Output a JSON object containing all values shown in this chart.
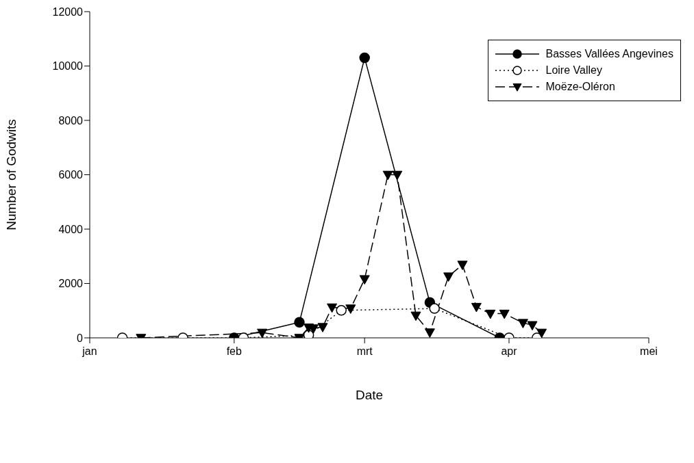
{
  "chart_data": {
    "type": "line",
    "xlabel": "Date",
    "ylabel": "Number of Godwits",
    "xlim": [
      "--01-01",
      "--05-01"
    ],
    "xticks": [
      {
        "value": "--01-01",
        "label": "jan"
      },
      {
        "value": "--02-01",
        "label": "feb"
      },
      {
        "value": "--03-01",
        "label": "mrt"
      },
      {
        "value": "--04-01",
        "label": "apr"
      },
      {
        "value": "--05-01",
        "label": "mei"
      }
    ],
    "ylim": [
      0,
      12000
    ],
    "yticks": [
      0,
      2000,
      4000,
      6000,
      8000,
      10000,
      12000
    ],
    "legend": "top right",
    "series": [
      {
        "name": "Basses Vallées Angevines",
        "color": "#000000",
        "marker": "circle",
        "line_style": "solid",
        "x": [
          "--02-01",
          "--02-15",
          "--03-01",
          "--03-15",
          "--03-30"
        ],
        "values": [
          0,
          570,
          10300,
          1300,
          0
        ]
      },
      {
        "name": "Loire Valley",
        "color": "#000000",
        "marker": "circle-open",
        "line_style": "dotted",
        "x": [
          "--01-08",
          "--01-21",
          "--02-03",
          "--02-17",
          "--02-24",
          "--03-16",
          "--04-01",
          "--04-07"
        ],
        "values": [
          0,
          0,
          0,
          100,
          1010,
          1080,
          0,
          0
        ]
      },
      {
        "name": "Moëze-Oléron",
        "color": "#000000",
        "marker": "triangle",
        "line_style": "dashed",
        "x": [
          "--01-12",
          "--02-07",
          "--02-15",
          "--02-17",
          "--02-18",
          "--02-20",
          "--02-22",
          "--02-26",
          "--03-01",
          "--03-06",
          "--03-08",
          "--03-12",
          "--03-15",
          "--03-19",
          "--03-22",
          "--03-25",
          "--03-28",
          "--03-31",
          "--04-04",
          "--04-06",
          "--04-08"
        ],
        "values": [
          0,
          190,
          0,
          380,
          350,
          400,
          1120,
          1080,
          2160,
          6000,
          6000,
          820,
          200,
          2260,
          2690,
          1140,
          890,
          890,
          550,
          470,
          190
        ]
      }
    ]
  }
}
